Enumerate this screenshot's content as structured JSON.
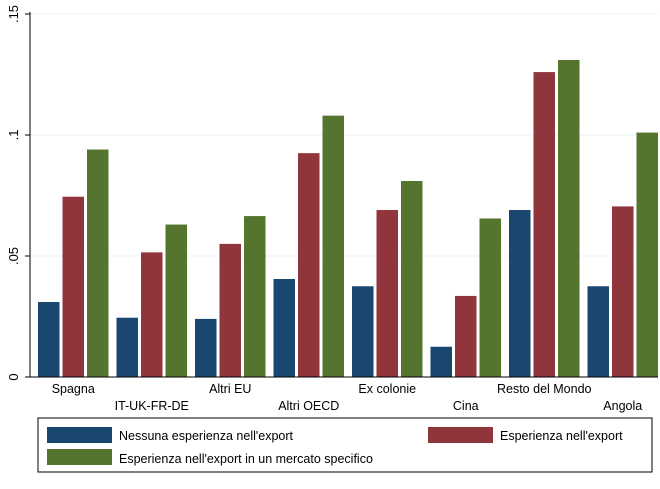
{
  "chart_data": {
    "type": "bar",
    "categories": [
      "Spagna",
      "IT-UK-FR-DE",
      "Altri EU",
      "Altri OECD",
      "Ex colonie",
      "Cina",
      "Resto del Mondo",
      "Angola"
    ],
    "series": [
      {
        "name": "Nessuna esperienza nell'export",
        "color": "#1a476f",
        "values": [
          0.031,
          0.0245,
          0.024,
          0.0405,
          0.0375,
          0.0125,
          0.069,
          0.0375
        ]
      },
      {
        "name": "Esperienza nell'export",
        "color": "#90353b",
        "values": [
          0.0745,
          0.0515,
          0.055,
          0.0925,
          0.069,
          0.0335,
          0.126,
          0.0705
        ]
      },
      {
        "name": "Esperienza nell'export in un mercato specifico",
        "color": "#55752f",
        "values": [
          0.094,
          0.063,
          0.0665,
          0.108,
          0.081,
          0.0655,
          0.131,
          0.101
        ]
      }
    ],
    "y_ticks": [
      0,
      0.05,
      0.1,
      0.15
    ],
    "y_tick_labels": [
      "0",
      ".05",
      ".1",
      ".15"
    ],
    "ylim": [
      0,
      0.15
    ],
    "grid": true,
    "legend_position": "bottom",
    "title": "",
    "xlabel": "",
    "ylabel": ""
  }
}
